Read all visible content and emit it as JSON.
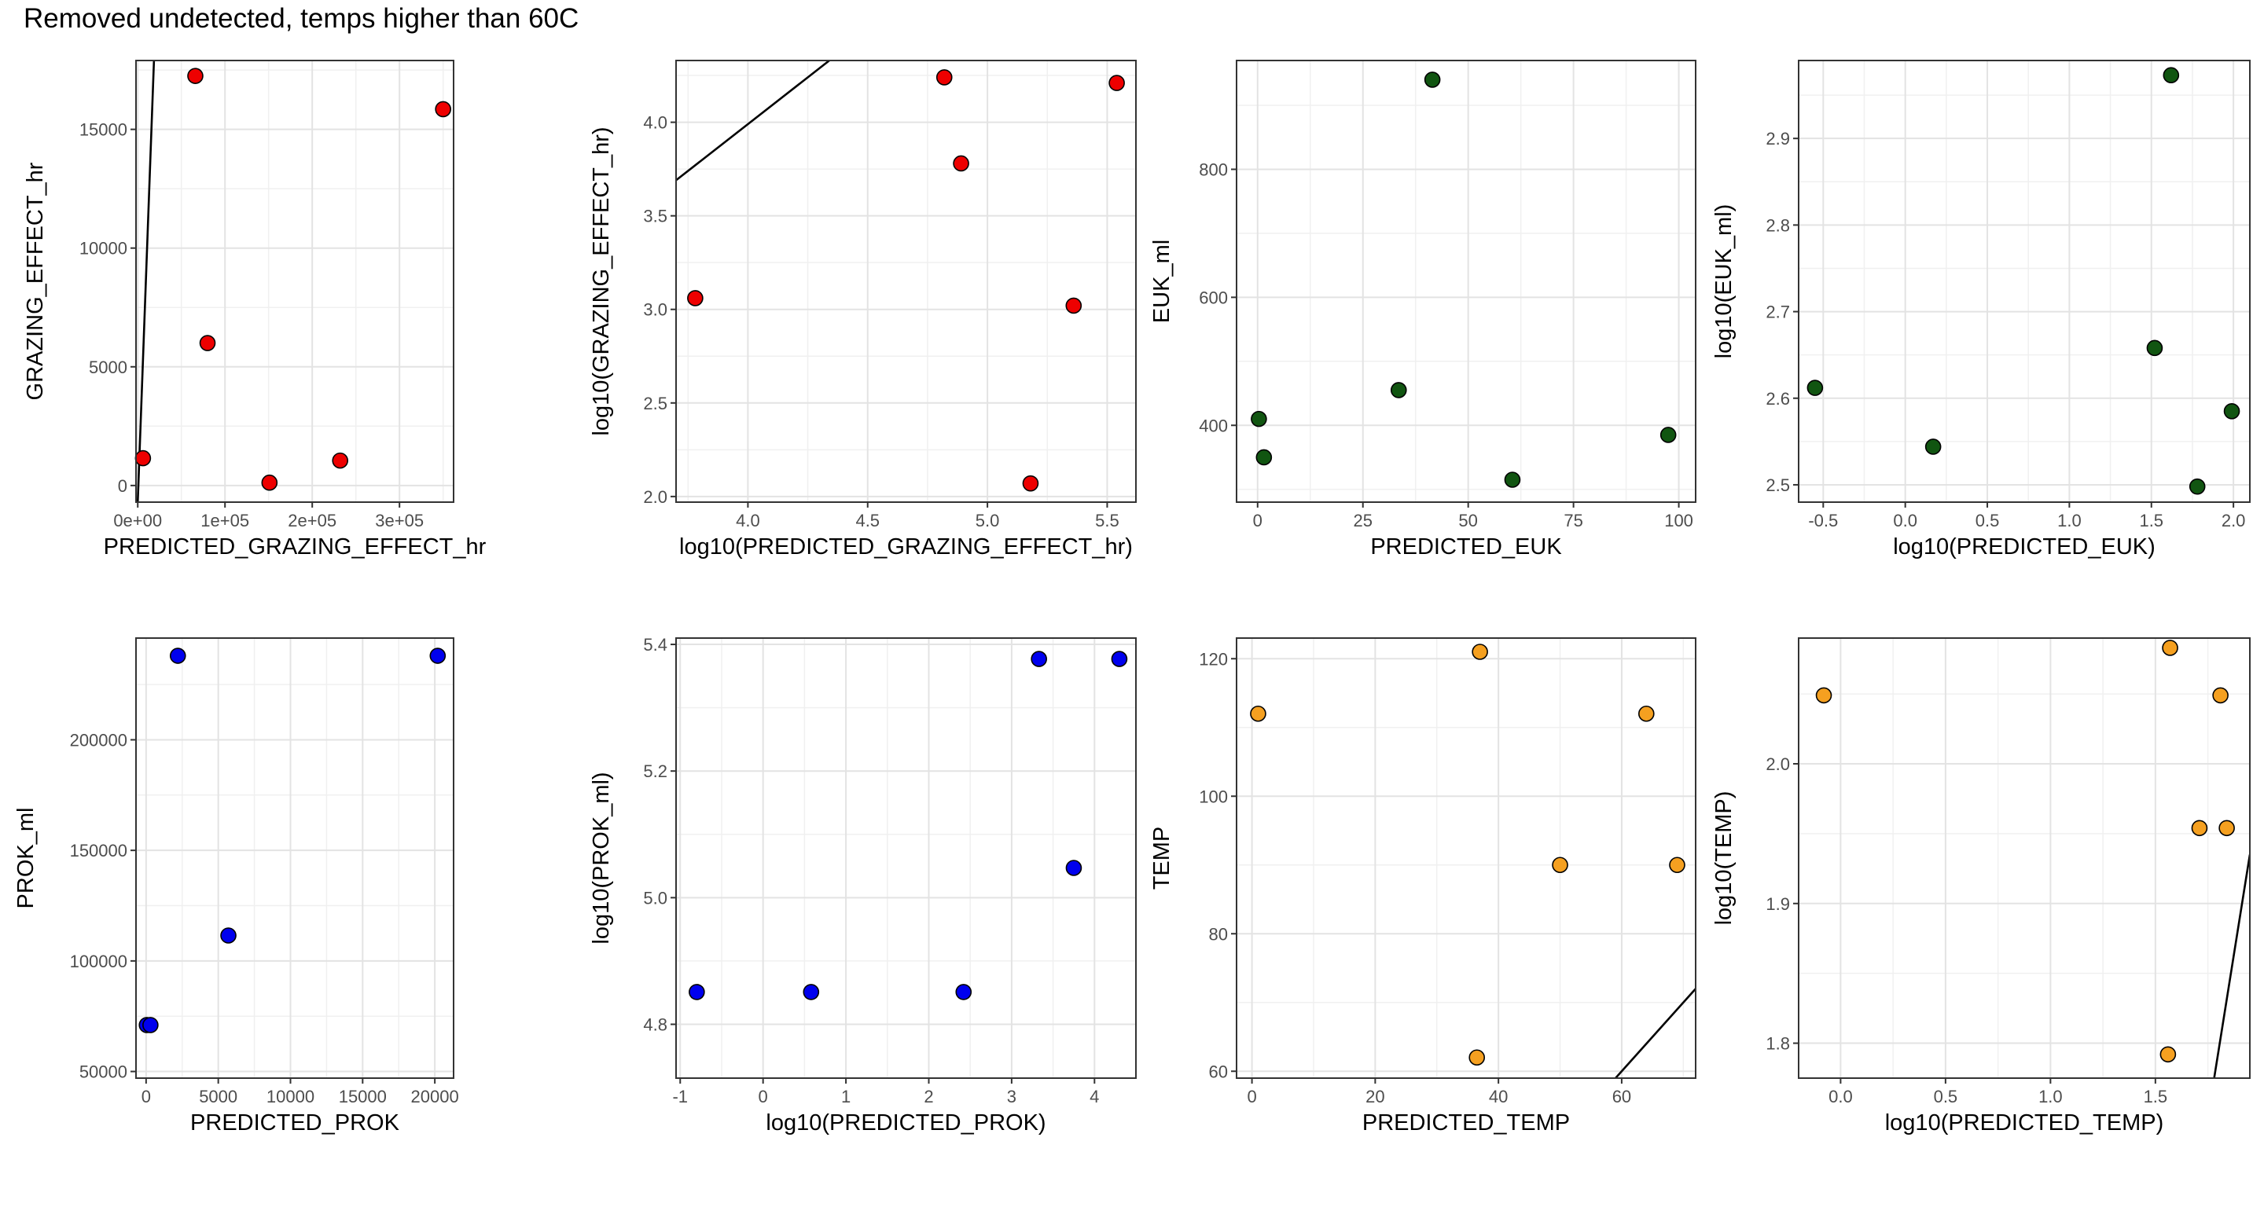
{
  "title": "Removed undetected, temps higher than 60C",
  "chart_data": [
    {
      "type": "scatter",
      "xlabel": "PREDICTED_GRAZING_EFFECT_hr",
      "ylabel": "GRAZING_EFFECT_hr",
      "xlim": [
        -2000,
        362000
      ],
      "ylim": [
        -700,
        17900
      ],
      "xticks": [
        {
          "v": 0,
          "t": "0e+00"
        },
        {
          "v": 100000,
          "t": "1e+05"
        },
        {
          "v": 200000,
          "t": "2e+05"
        },
        {
          "v": 300000,
          "t": "3e+05"
        }
      ],
      "yticks": [
        {
          "v": 0,
          "t": "0"
        },
        {
          "v": 5000,
          "t": "5000"
        },
        {
          "v": 10000,
          "t": "10000"
        },
        {
          "v": 15000,
          "t": "15000"
        }
      ],
      "point_color": "#ee0000",
      "points": [
        [
          66000,
          17250
        ],
        [
          350000,
          15850
        ],
        [
          80000,
          6000
        ],
        [
          6000,
          1150
        ],
        [
          151000,
          120
        ],
        [
          232000,
          1050
        ]
      ],
      "line": [
        [
          0,
          -700
        ],
        [
          18600,
          17900
        ]
      ]
    },
    {
      "type": "scatter",
      "xlabel": "log10(PREDICTED_GRAZING_EFFECT_hr)",
      "ylabel": "log10(GRAZING_EFFECT_hr)",
      "xlim": [
        3.7,
        5.62
      ],
      "ylim": [
        1.97,
        4.33
      ],
      "xticks": [
        {
          "v": 4.0,
          "t": "4.0"
        },
        {
          "v": 4.5,
          "t": "4.5"
        },
        {
          "v": 5.0,
          "t": "5.0"
        },
        {
          "v": 5.5,
          "t": "5.5"
        }
      ],
      "yticks": [
        {
          "v": 2.0,
          "t": "2.0"
        },
        {
          "v": 2.5,
          "t": "2.5"
        },
        {
          "v": 3.0,
          "t": "3.0"
        },
        {
          "v": 3.5,
          "t": "3.5"
        },
        {
          "v": 4.0,
          "t": "4.0"
        }
      ],
      "point_color": "#ee0000",
      "points": [
        [
          4.82,
          4.24
        ],
        [
          5.54,
          4.21
        ],
        [
          4.89,
          3.78
        ],
        [
          3.78,
          3.06
        ],
        [
          5.36,
          3.02
        ],
        [
          5.18,
          2.07
        ]
      ],
      "line": [
        [
          3.7,
          3.69
        ],
        [
          4.34,
          4.33
        ]
      ]
    },
    {
      "type": "scatter",
      "xlabel": "PREDICTED_EUK",
      "ylabel": "EUK_ml",
      "xlim": [
        -5,
        104
      ],
      "ylim": [
        280,
        970
      ],
      "xticks": [
        {
          "v": 0,
          "t": "0"
        },
        {
          "v": 25,
          "t": "25"
        },
        {
          "v": 50,
          "t": "50"
        },
        {
          "v": 75,
          "t": "75"
        },
        {
          "v": 100,
          "t": "100"
        }
      ],
      "yticks": [
        {
          "v": 400,
          "t": "400"
        },
        {
          "v": 600,
          "t": "600"
        },
        {
          "v": 800,
          "t": "800"
        }
      ],
      "point_color": "#115511",
      "points": [
        [
          41.5,
          940
        ],
        [
          0.3,
          410
        ],
        [
          1.5,
          350
        ],
        [
          33.5,
          455
        ],
        [
          60.5,
          315
        ],
        [
          97.5,
          385
        ]
      ],
      "line": []
    },
    {
      "type": "scatter",
      "xlabel": "log10(PREDICTED_EUK)",
      "ylabel": "log10(EUK_ml)",
      "xlim": [
        -0.65,
        2.1
      ],
      "ylim": [
        2.48,
        2.99
      ],
      "xticks": [
        {
          "v": -0.5,
          "t": "-0.5"
        },
        {
          "v": 0.0,
          "t": "0.0"
        },
        {
          "v": 0.5,
          "t": "0.5"
        },
        {
          "v": 1.0,
          "t": "1.0"
        },
        {
          "v": 1.5,
          "t": "1.5"
        },
        {
          "v": 2.0,
          "t": "2.0"
        }
      ],
      "yticks": [
        {
          "v": 2.5,
          "t": "2.5"
        },
        {
          "v": 2.6,
          "t": "2.6"
        },
        {
          "v": 2.7,
          "t": "2.7"
        },
        {
          "v": 2.8,
          "t": "2.8"
        },
        {
          "v": 2.9,
          "t": "2.9"
        }
      ],
      "point_color": "#115511",
      "points": [
        [
          1.62,
          2.973
        ],
        [
          -0.55,
          2.612
        ],
        [
          0.17,
          2.544
        ],
        [
          1.52,
          2.658
        ],
        [
          1.78,
          2.498
        ],
        [
          1.99,
          2.585
        ]
      ],
      "line": []
    },
    {
      "type": "scatter",
      "xlabel": "PREDICTED_PROK",
      "ylabel": "PROK_ml",
      "xlim": [
        -700,
        21300
      ],
      "ylim": [
        47000,
        246000
      ],
      "xticks": [
        {
          "v": 0,
          "t": "0"
        },
        {
          "v": 5000,
          "t": "5000"
        },
        {
          "v": 10000,
          "t": "10000"
        },
        {
          "v": 15000,
          "t": "15000"
        },
        {
          "v": 20000,
          "t": "20000"
        }
      ],
      "yticks": [
        {
          "v": 50000,
          "t": "50000"
        },
        {
          "v": 100000,
          "t": "100000"
        },
        {
          "v": 150000,
          "t": "150000"
        },
        {
          "v": 200000,
          "t": "200000"
        }
      ],
      "point_color": "#0000ee",
      "points": [
        [
          2200,
          238000
        ],
        [
          20200,
          238000
        ],
        [
          5700,
          111500
        ],
        [
          50,
          71000
        ],
        [
          300,
          71000
        ]
      ],
      "line": []
    },
    {
      "type": "scatter",
      "xlabel": "log10(PREDICTED_PROK)",
      "ylabel": "log10(PROK_ml)",
      "xlim": [
        -1.05,
        4.5
      ],
      "ylim": [
        4.715,
        5.41
      ],
      "xticks": [
        {
          "v": -1,
          "t": "-1"
        },
        {
          "v": 0,
          "t": "0"
        },
        {
          "v": 1,
          "t": "1"
        },
        {
          "v": 2,
          "t": "2"
        },
        {
          "v": 3,
          "t": "3"
        },
        {
          "v": 4,
          "t": "4"
        }
      ],
      "yticks": [
        {
          "v": 4.8,
          "t": "4.8"
        },
        {
          "v": 5.0,
          "t": "5.0"
        },
        {
          "v": 5.2,
          "t": "5.2"
        },
        {
          "v": 5.4,
          "t": "5.4"
        }
      ],
      "point_color": "#0000ee",
      "points": [
        [
          3.33,
          5.377
        ],
        [
          4.3,
          5.377
        ],
        [
          3.75,
          5.047
        ],
        [
          -0.8,
          4.851
        ],
        [
          0.58,
          4.851
        ],
        [
          2.42,
          4.851
        ]
      ],
      "line": []
    },
    {
      "type": "scatter",
      "xlabel": "PREDICTED_TEMP",
      "ylabel": "TEMP",
      "xlim": [
        -2.5,
        72
      ],
      "ylim": [
        59,
        123
      ],
      "xticks": [
        {
          "v": 0,
          "t": "0"
        },
        {
          "v": 20,
          "t": "20"
        },
        {
          "v": 40,
          "t": "40"
        },
        {
          "v": 60,
          "t": "60"
        }
      ],
      "yticks": [
        {
          "v": 60,
          "t": "60"
        },
        {
          "v": 80,
          "t": "80"
        },
        {
          "v": 100,
          "t": "100"
        },
        {
          "v": 120,
          "t": "120"
        }
      ],
      "point_color": "#f5a020",
      "points": [
        [
          1,
          112
        ],
        [
          37,
          121
        ],
        [
          64,
          112
        ],
        [
          50,
          90
        ],
        [
          69,
          90
        ],
        [
          36.5,
          62
        ]
      ],
      "line": [
        [
          59,
          59
        ],
        [
          72,
          72
        ]
      ]
    },
    {
      "type": "scatter",
      "xlabel": "log10(PREDICTED_TEMP)",
      "ylabel": "log10(TEMP)",
      "xlim": [
        -0.2,
        1.95
      ],
      "ylim": [
        1.775,
        2.09
      ],
      "xticks": [
        {
          "v": 0.0,
          "t": "0.0"
        },
        {
          "v": 0.5,
          "t": "0.5"
        },
        {
          "v": 1.0,
          "t": "1.0"
        },
        {
          "v": 1.5,
          "t": "1.5"
        }
      ],
      "yticks": [
        {
          "v": 1.8,
          "t": "1.8"
        },
        {
          "v": 1.9,
          "t": "1.9"
        },
        {
          "v": 2.0,
          "t": "2.0"
        }
      ],
      "point_color": "#f5a020",
      "points": [
        [
          -0.08,
          2.049
        ],
        [
          1.57,
          2.083
        ],
        [
          1.81,
          2.049
        ],
        [
          1.71,
          1.954
        ],
        [
          1.84,
          1.954
        ],
        [
          1.56,
          1.792
        ]
      ],
      "line": [
        [
          1.78,
          1.775
        ],
        [
          1.95,
          1.935
        ]
      ]
    }
  ]
}
